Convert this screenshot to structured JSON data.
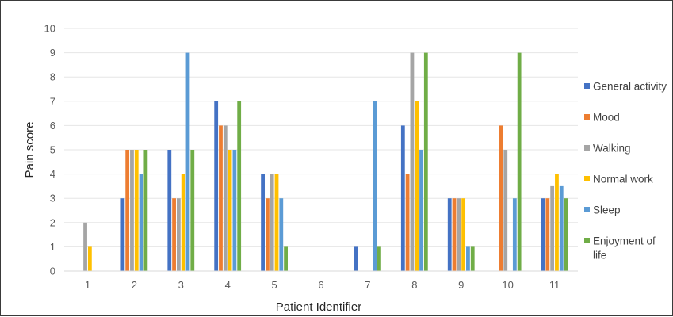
{
  "chart_data": {
    "type": "bar",
    "title": "",
    "xlabel": "Patient Identifier",
    "ylabel": "Pain score",
    "ylim": [
      0,
      10
    ],
    "yticks": [
      0,
      1,
      2,
      3,
      4,
      5,
      6,
      7,
      8,
      9,
      10
    ],
    "grid": true,
    "legend_position": "right",
    "categories": [
      "1",
      "2",
      "3",
      "4",
      "5",
      "6",
      "7",
      "8",
      "9",
      "10",
      "11"
    ],
    "series": [
      {
        "name": "General activity",
        "color": "#4472C4",
        "values": [
          0,
          3,
          5,
          7,
          4,
          0,
          1,
          6,
          3,
          0,
          3
        ]
      },
      {
        "name": "Mood",
        "color": "#ED7D31",
        "values": [
          0,
          5,
          3,
          6,
          3,
          0,
          0,
          4,
          3,
          6,
          3
        ]
      },
      {
        "name": "Walking",
        "color": "#A5A5A5",
        "values": [
          2,
          5,
          3,
          6,
          4,
          0,
          0,
          9,
          3,
          5,
          3.5
        ]
      },
      {
        "name": "Normal work",
        "color": "#FFC000",
        "values": [
          1,
          5,
          4,
          5,
          4,
          0,
          0,
          7,
          3,
          0,
          4
        ]
      },
      {
        "name": "Sleep",
        "color": "#5B9BD5",
        "values": [
          0,
          4,
          9,
          5,
          3,
          0,
          7,
          5,
          1,
          3,
          3.5
        ]
      },
      {
        "name": "Enjoyment of life",
        "legend_lines": [
          "Enjoyment of",
          "life"
        ],
        "color": "#70AD47",
        "values": [
          0,
          5,
          5,
          7,
          1,
          0,
          1,
          9,
          1,
          9,
          3
        ]
      }
    ]
  }
}
